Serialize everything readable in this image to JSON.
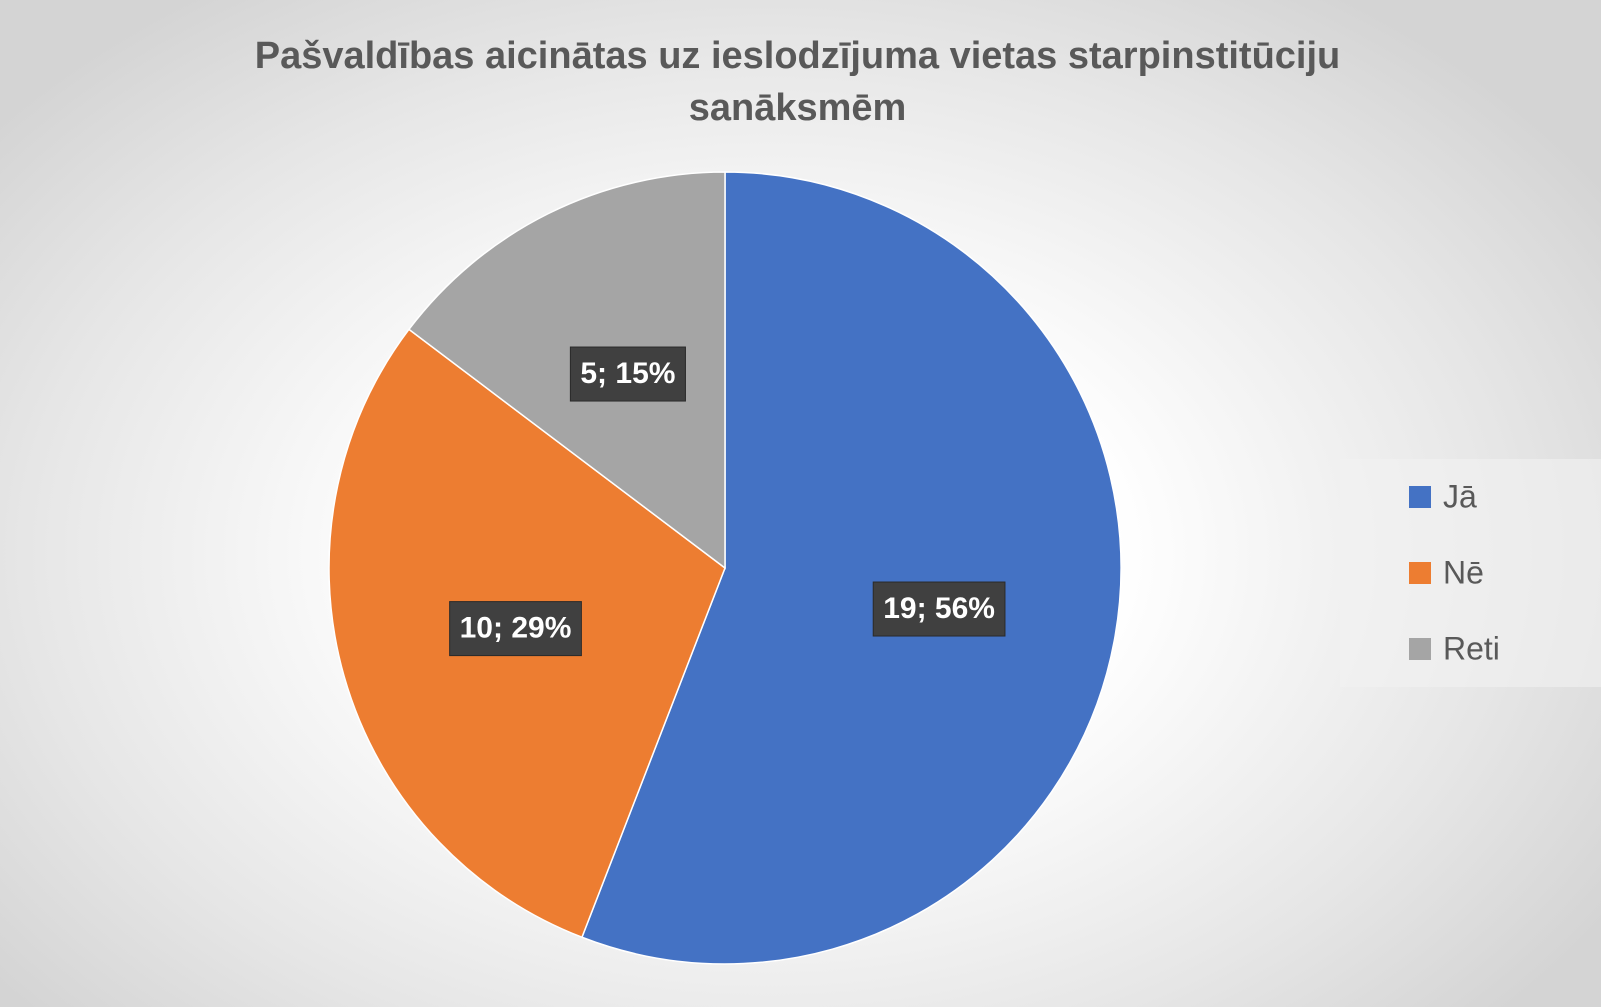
{
  "chart_data": {
    "type": "pie",
    "title": "Pašvaldības aicinātas uz ieslodzījuma vietas starpinstitūciju sanāksmēm",
    "categories": [
      "Jā",
      "Nē",
      "Reti"
    ],
    "values": [
      19,
      10,
      5
    ],
    "value_labels": [
      "19; 56%",
      "10; 29%",
      "5; 15%"
    ],
    "colors": [
      "#4472c4",
      "#ed7d31",
      "#a5a5a5"
    ],
    "legend": "right"
  }
}
